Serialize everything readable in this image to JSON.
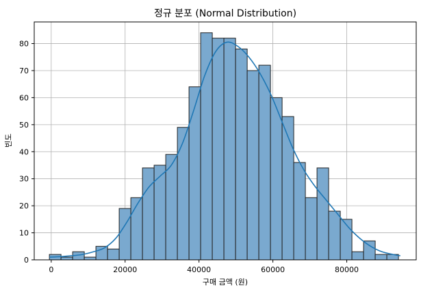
{
  "chart_data": {
    "type": "bar",
    "title": "정규 분포 (Normal Distribution)",
    "xlabel": "구매 금액 (원)",
    "ylabel": "빈도",
    "xlim": [
      -4600,
      98800
    ],
    "ylim": [
      0,
      88
    ],
    "xticks": [
      0,
      20000,
      40000,
      60000,
      80000
    ],
    "xtick_labels": [
      "0",
      "20000",
      "40000",
      "60000",
      "80000"
    ],
    "yticks": [
      0,
      10,
      20,
      30,
      40,
      50,
      60,
      70,
      80
    ],
    "yticks_labels": [
      "0",
      "10",
      "20",
      "30",
      "40",
      "50",
      "60",
      "70",
      "80"
    ],
    "grid": true,
    "bin_start": -500,
    "bin_width": 3150,
    "values": [
      2,
      1,
      3,
      1,
      5,
      4,
      19,
      23,
      34,
      35,
      39,
      49,
      64,
      84,
      82,
      82,
      78,
      70,
      72,
      60,
      53,
      36,
      23,
      34,
      18,
      15,
      3,
      7,
      2,
      2
    ],
    "kde": {
      "x": [
        -500,
        2500,
        5500,
        8500,
        11500,
        14500,
        17500,
        20500,
        23500,
        26500,
        29500,
        32500,
        35500,
        38500,
        41500,
        44500,
        47500,
        50500,
        53500,
        56500,
        59500,
        62500,
        65500,
        68500,
        71500,
        74500,
        77500,
        80500,
        83500,
        86500,
        89500,
        92500,
        94500
      ],
      "y": [
        1,
        1.2,
        1.5,
        2,
        3,
        4.5,
        8,
        14,
        21,
        27,
        31,
        35,
        43,
        55,
        68,
        77,
        80.5,
        79,
        75,
        69,
        61,
        51,
        41,
        33,
        27,
        22,
        17,
        12,
        8,
        5,
        3,
        2,
        1.5
      ]
    },
    "colors": {
      "bar_fill": "#7aa9cf",
      "bar_edge": "#222222",
      "kde_line": "#1f77b4",
      "grid": "#b0b0b0"
    }
  }
}
